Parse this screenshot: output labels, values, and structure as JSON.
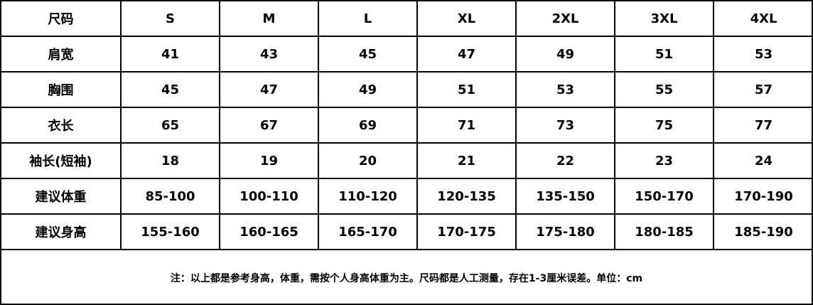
{
  "table": {
    "header": [
      "尺码",
      "S",
      "M",
      "L",
      "XL",
      "2XL",
      "3XL",
      "4XL"
    ],
    "rows": [
      [
        "肩宽",
        "41",
        "43",
        "45",
        "47",
        "49",
        "51",
        "53"
      ],
      [
        "胸围",
        "45",
        "47",
        "49",
        "51",
        "53",
        "55",
        "57"
      ],
      [
        "衣长",
        "65",
        "67",
        "69",
        "71",
        "73",
        "75",
        "77"
      ],
      [
        "袖长(短袖)",
        "18",
        "19",
        "20",
        "21",
        "22",
        "23",
        "24"
      ],
      [
        "建议体重",
        "85-100",
        "100-110",
        "110-120",
        "120-135",
        "135-150",
        "150-170",
        "170-190"
      ],
      [
        "建议身高",
        "155-160",
        "160-165",
        "165-170",
        "170-175",
        "175-180",
        "180-185",
        "185-190"
      ]
    ],
    "note": "注：以上都是参考身高，体重，需按个人身高体重为主。尺码都是人工测量，存在1-3厘米误差。单位：cm"
  }
}
